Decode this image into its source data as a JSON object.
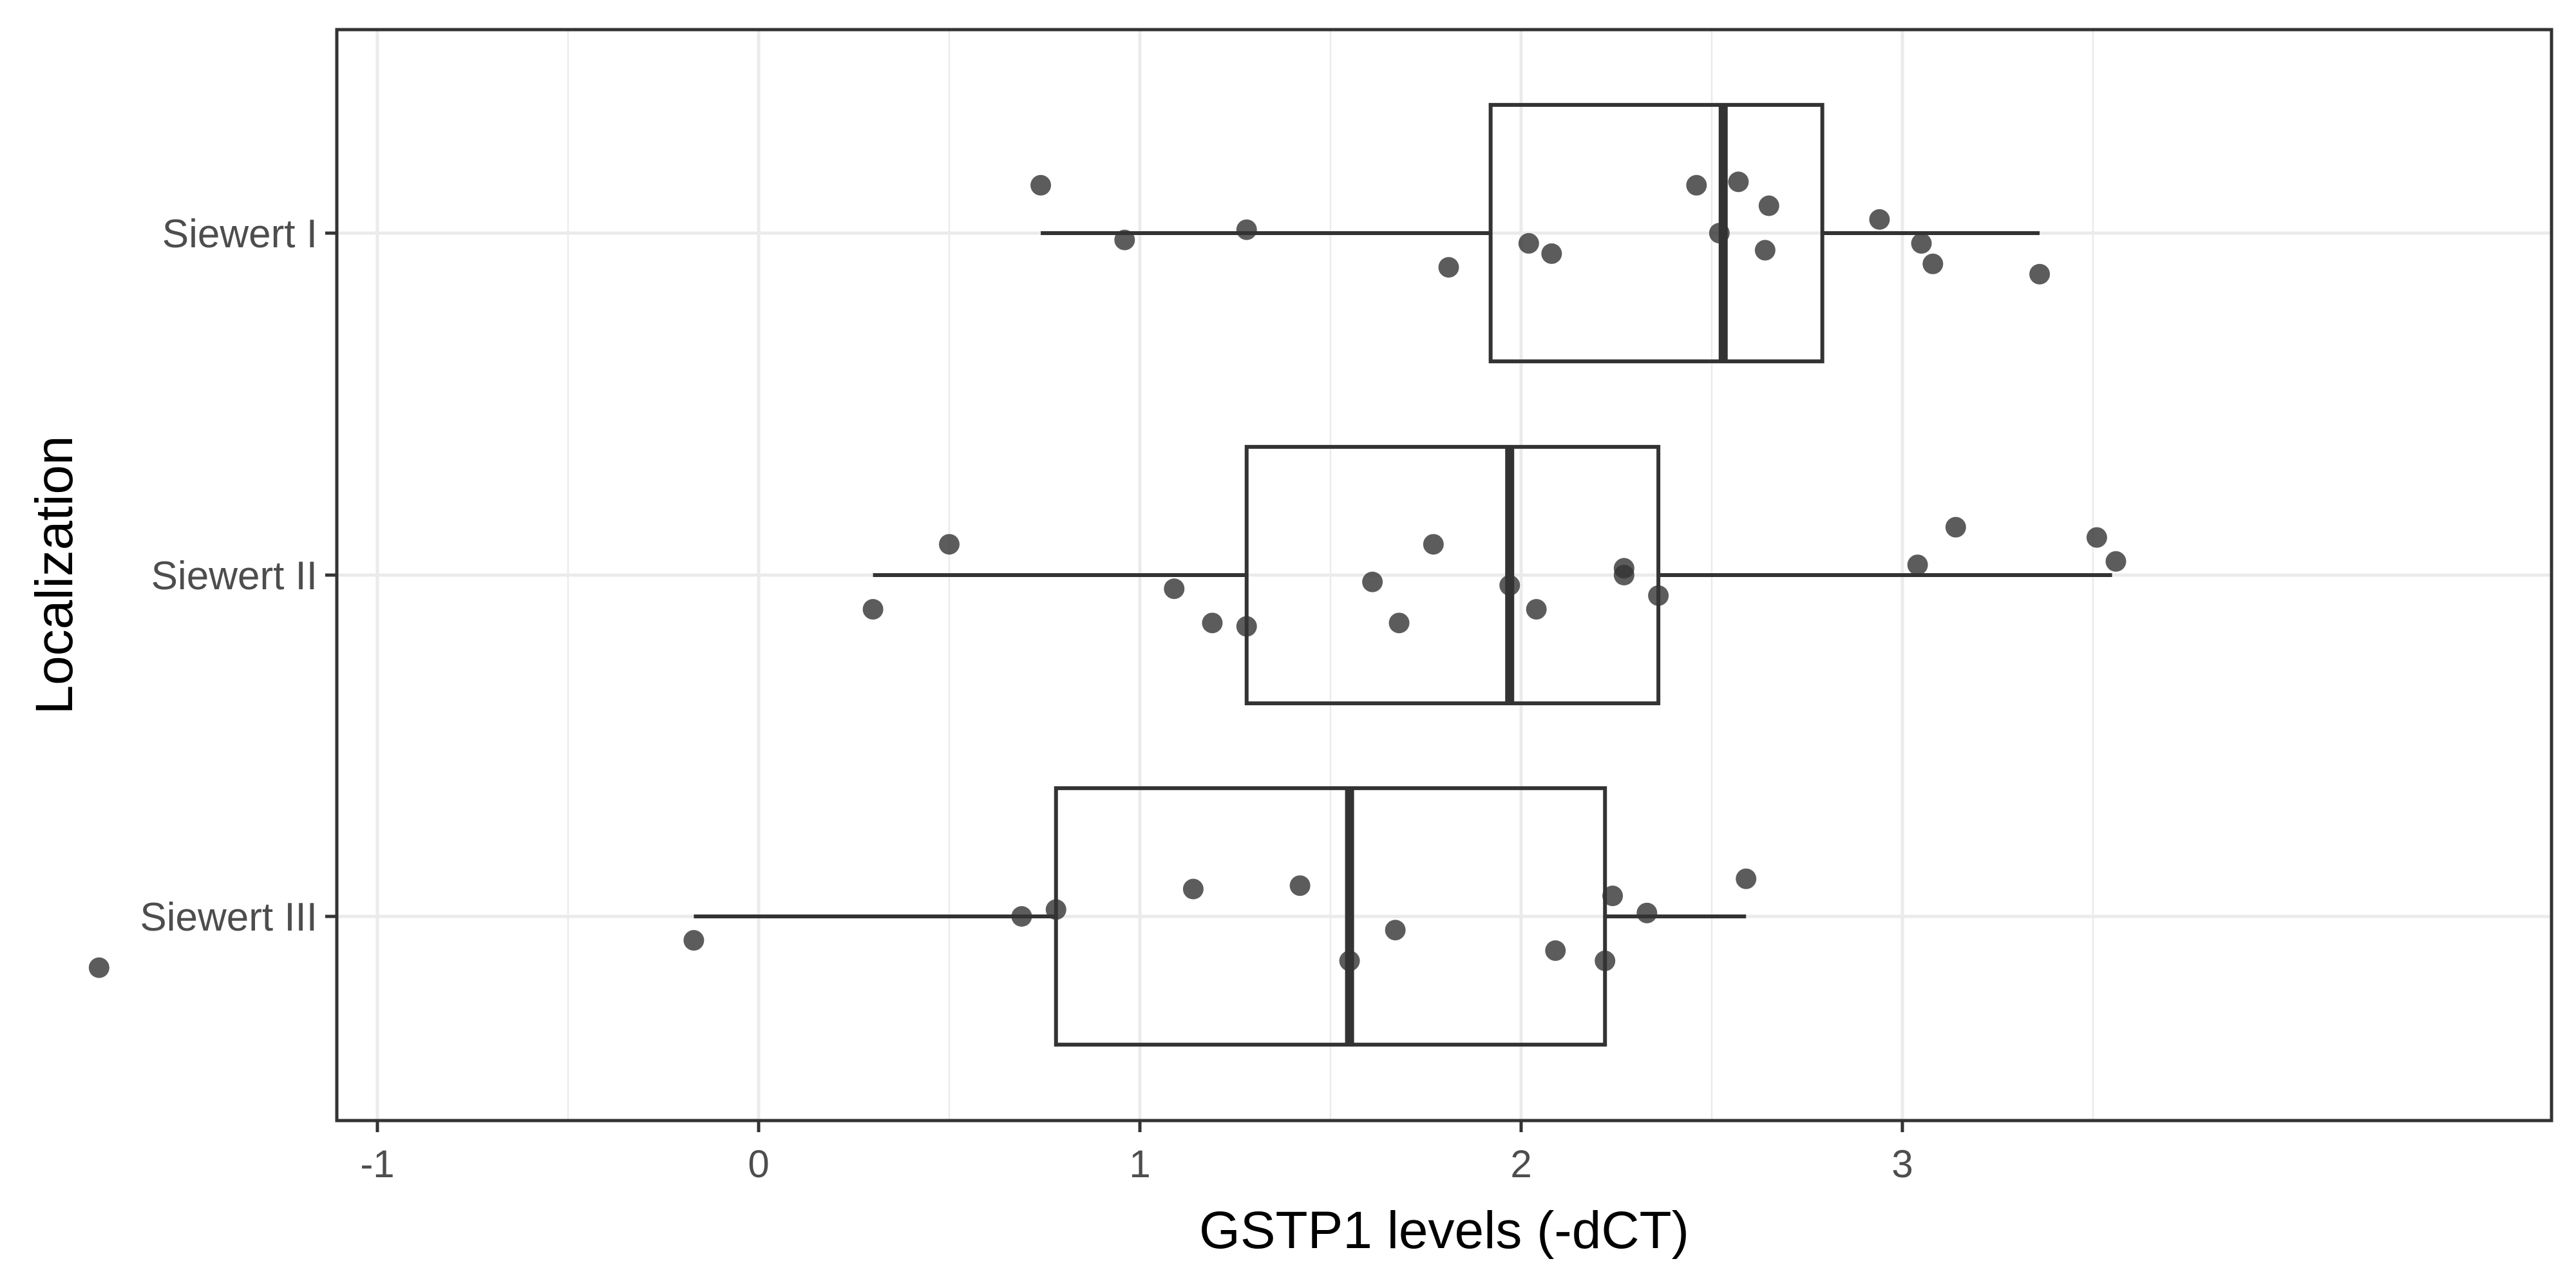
{
  "chart_data": {
    "type": "boxplot",
    "orientation": "horizontal",
    "xlabel": "GSTP1 levels (-dCT)",
    "ylabel": "Localization",
    "xlim": [
      -1.97,
      3.85
    ],
    "x_ticks": [
      -1,
      0,
      1,
      2,
      3
    ],
    "x_tick_labels": [
      "-1",
      "0",
      "1",
      "2",
      "3"
    ],
    "grid": true,
    "theme": "bw",
    "colors": {
      "background": "#ffffff",
      "grid": "#ebebeb",
      "panel_border": "#333333",
      "box": "#333333",
      "point": "#333333"
    },
    "categories": [
      "Siewert I",
      "Siewert II",
      "Siewert III"
    ],
    "groups": [
      {
        "name": "Siewert I",
        "box": {
          "whisker_low": 0.74,
          "q1": 1.92,
          "median": 2.53,
          "q3": 2.79,
          "whisker_high": 3.36
        },
        "points": [
          {
            "x": 0.74,
            "jitter": 0.14
          },
          {
            "x": 0.96,
            "jitter": -0.02
          },
          {
            "x": 1.28,
            "jitter": 0.01
          },
          {
            "x": 1.81,
            "jitter": -0.1
          },
          {
            "x": 2.02,
            "jitter": -0.03
          },
          {
            "x": 2.08,
            "jitter": -0.06
          },
          {
            "x": 2.46,
            "jitter": 0.14
          },
          {
            "x": 2.52,
            "jitter": 0.0
          },
          {
            "x": 2.57,
            "jitter": 0.15
          },
          {
            "x": 2.64,
            "jitter": -0.05
          },
          {
            "x": 2.65,
            "jitter": 0.08
          },
          {
            "x": 2.94,
            "jitter": 0.04
          },
          {
            "x": 3.05,
            "jitter": -0.03
          },
          {
            "x": 3.08,
            "jitter": -0.09
          },
          {
            "x": 3.36,
            "jitter": -0.12
          }
        ]
      },
      {
        "name": "Siewert II",
        "box": {
          "whisker_low": 0.3,
          "q1": 1.28,
          "median": 1.97,
          "q3": 2.36,
          "whisker_high": 3.55
        },
        "points": [
          {
            "x": 0.3,
            "jitter": -0.1
          },
          {
            "x": 0.5,
            "jitter": 0.09
          },
          {
            "x": 1.09,
            "jitter": -0.04
          },
          {
            "x": 1.19,
            "jitter": -0.14
          },
          {
            "x": 1.28,
            "jitter": -0.15
          },
          {
            "x": 1.61,
            "jitter": -0.02
          },
          {
            "x": 1.68,
            "jitter": -0.14
          },
          {
            "x": 1.77,
            "jitter": 0.09
          },
          {
            "x": 1.97,
            "jitter": -0.03
          },
          {
            "x": 2.04,
            "jitter": -0.1
          },
          {
            "x": 2.27,
            "jitter": 0.02
          },
          {
            "x": 2.27,
            "jitter": 0.0
          },
          {
            "x": 2.36,
            "jitter": -0.06
          },
          {
            "x": 3.04,
            "jitter": 0.03
          },
          {
            "x": 3.14,
            "jitter": 0.14
          },
          {
            "x": 3.51,
            "jitter": 0.11
          },
          {
            "x": 3.56,
            "jitter": 0.04
          }
        ]
      },
      {
        "name": "Siewert III",
        "box": {
          "whisker_low": -0.17,
          "q1": 0.78,
          "median": 1.55,
          "q3": 2.22,
          "whisker_high": 2.59
        },
        "points": [
          {
            "x": -1.73,
            "jitter": -0.15
          },
          {
            "x": -0.17,
            "jitter": -0.07
          },
          {
            "x": 0.69,
            "jitter": 0.0
          },
          {
            "x": 0.78,
            "jitter": 0.02
          },
          {
            "x": 1.14,
            "jitter": 0.08
          },
          {
            "x": 1.42,
            "jitter": 0.09
          },
          {
            "x": 1.55,
            "jitter": -0.13
          },
          {
            "x": 1.67,
            "jitter": -0.04
          },
          {
            "x": 2.09,
            "jitter": -0.1
          },
          {
            "x": 2.22,
            "jitter": -0.13
          },
          {
            "x": 2.24,
            "jitter": 0.06
          },
          {
            "x": 2.33,
            "jitter": 0.01
          },
          {
            "x": 2.59,
            "jitter": 0.11
          }
        ]
      }
    ]
  }
}
